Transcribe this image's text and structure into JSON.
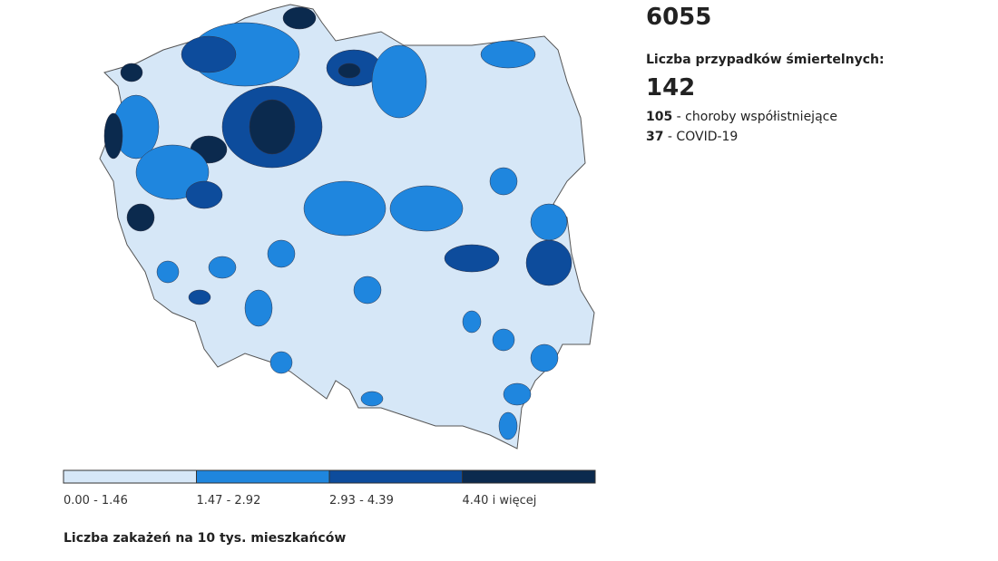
{
  "stats": {
    "total": "6055",
    "deaths_label": "Liczba przypadków śmiertelnych:",
    "deaths": "142",
    "breakdown": [
      {
        "count": "105",
        "label": " - choroby współistniejące"
      },
      {
        "count": "37",
        "label": " - COVID-19"
      }
    ]
  },
  "legend": {
    "items": [
      {
        "label": "0.00 - 1.46",
        "color": "#d6e7f7"
      },
      {
        "label": "1.47 - 2.92",
        "color": "#1f86de"
      },
      {
        "label": "2.93 - 4.39",
        "color": "#0d4c9c"
      },
      {
        "label": "4.40 i więcej",
        "color": "#0b2a4e"
      }
    ],
    "caption": "Liczba zakażeń na 10 tys. mieszkańców"
  }
}
